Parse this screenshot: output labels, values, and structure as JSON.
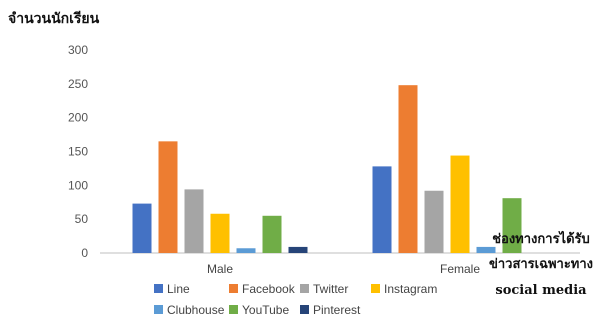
{
  "chart_data": {
    "type": "bar",
    "ylabel": "จำนวนนักเรียน",
    "xlabel": "",
    "ylim": [
      0,
      300
    ],
    "yticks": [
      0,
      50,
      100,
      150,
      200,
      250,
      300
    ],
    "categories": [
      "Male",
      "Female"
    ],
    "series": [
      {
        "name": "Line",
        "color": "#4472C4",
        "values": [
          73,
          128
        ]
      },
      {
        "name": "Facebook",
        "color": "#ED7D31",
        "values": [
          165,
          248
        ]
      },
      {
        "name": "Twitter",
        "color": "#A5A5A5",
        "values": [
          94,
          92
        ]
      },
      {
        "name": "Instagram",
        "color": "#FFC000",
        "values": [
          58,
          144
        ]
      },
      {
        "name": "Clubhouse",
        "color": "#5B9BD5",
        "values": [
          7,
          9
        ]
      },
      {
        "name": "YouTube",
        "color": "#70AD47",
        "values": [
          55,
          81
        ]
      },
      {
        "name": "Pinterest",
        "color": "#264478",
        "values": [
          9,
          0
        ]
      }
    ],
    "grid": false,
    "legend_position": "bottom",
    "annotation": [
      "ช่องทางการได้รับ",
      "ข่าวสารเฉพาะทาง",
      "social media"
    ]
  }
}
